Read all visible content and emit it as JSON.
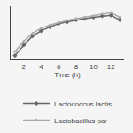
{
  "chart_data": {
    "type": "line",
    "x": [
      1,
      2,
      3,
      4,
      5,
      6,
      7,
      8,
      9,
      10,
      11,
      12,
      13
    ],
    "series": [
      {
        "name": "Lactococcus lactis",
        "color": "#666666",
        "marker": "diamond",
        "values": [
          6.0,
          6.8,
          7.5,
          7.9,
          8.2,
          8.45,
          8.6,
          8.75,
          8.85,
          8.95,
          9.05,
          9.1,
          8.75
        ]
      },
      {
        "name": "Lactobacillus par",
        "color": "#aaaaaa",
        "marker": "triangle-up",
        "values": [
          6.3,
          7.1,
          7.7,
          8.1,
          8.35,
          8.55,
          8.7,
          8.85,
          8.95,
          9.05,
          9.2,
          9.3,
          8.95
        ]
      }
    ],
    "xlabel": "Time (h)",
    "xlim": [
      0.5,
      13.5
    ],
    "xticks": [
      2,
      4,
      6,
      8,
      10,
      12
    ],
    "ylim": [
      5.7,
      9.8
    ],
    "tick_labels": "x",
    "grid": false,
    "legend": "bottom"
  }
}
